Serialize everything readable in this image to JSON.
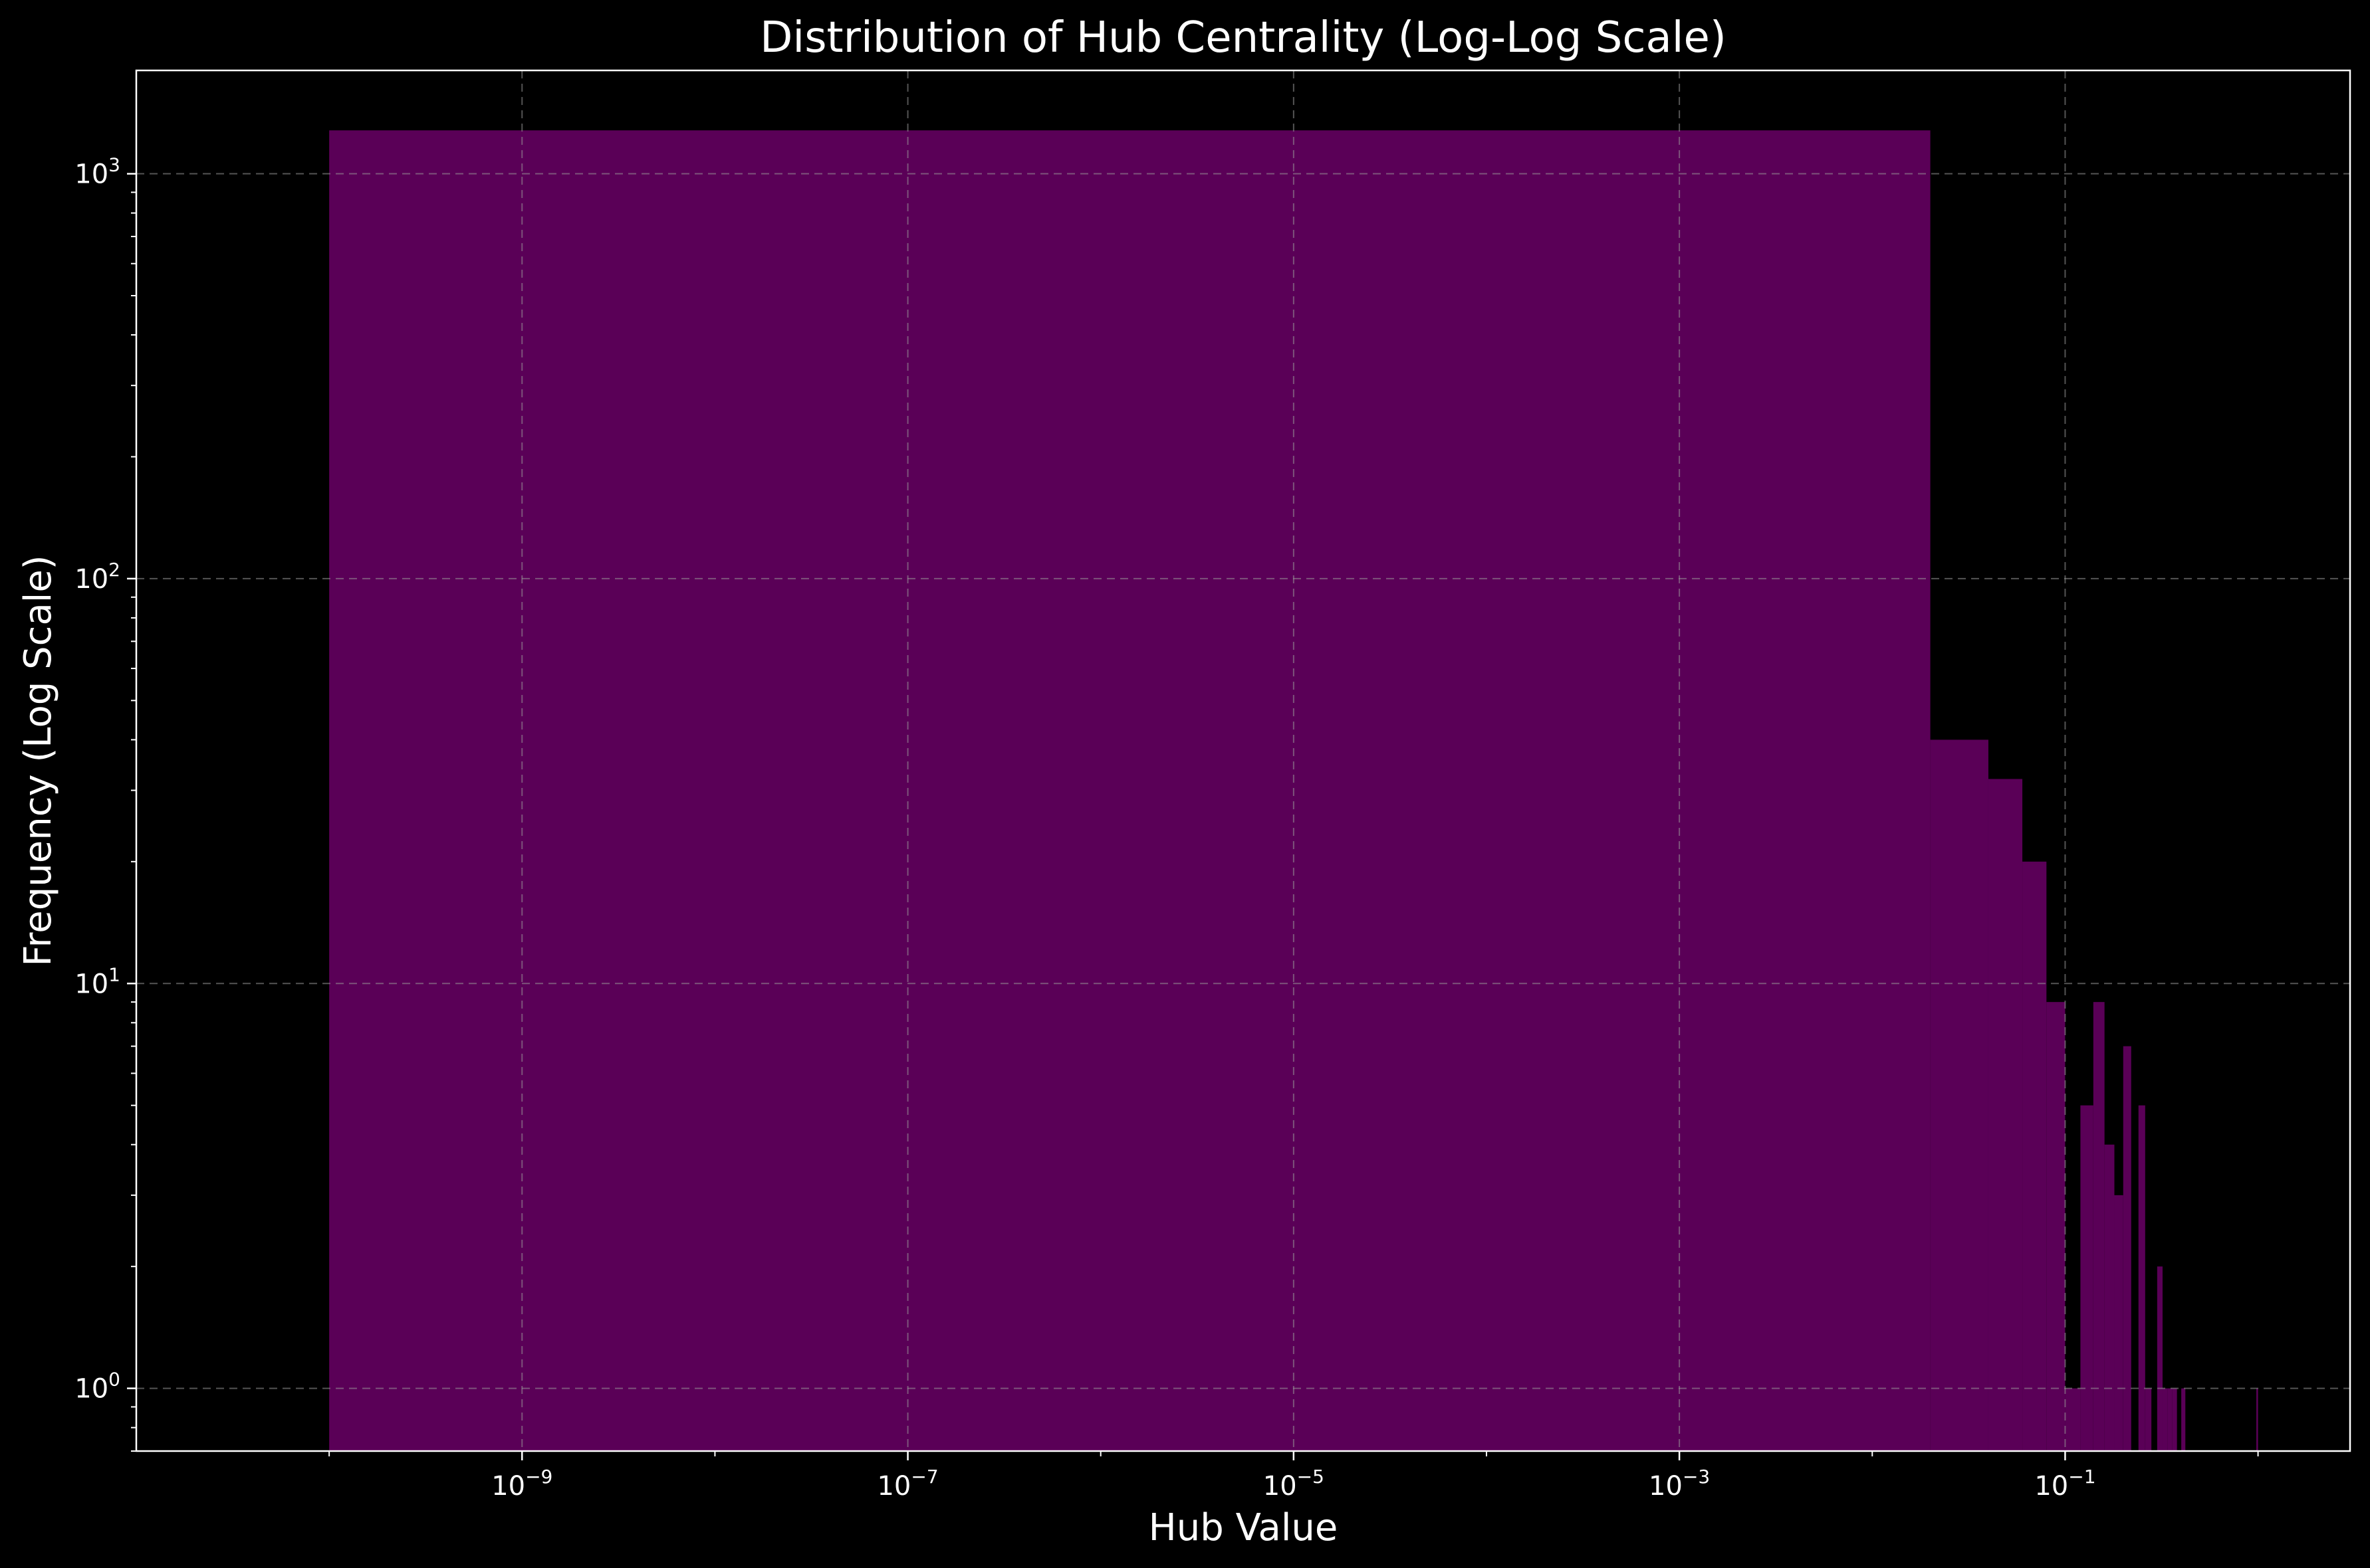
{
  "chart_data": {
    "type": "bar",
    "title": "Distribution of Hub Centrality (Log-Log Scale)",
    "xlabel": "Hub Value",
    "ylabel": "Frequency (Log Scale)",
    "x_scale": "log",
    "y_scale": "log",
    "xlim": [
      1e-11,
      3.0
    ],
    "ylim": [
      0.7,
      1800
    ],
    "grid": true,
    "legend": "none",
    "bar_color": "#5a0057",
    "background": "#000000",
    "x_ticks": [
      {
        "value": 1e-09,
        "base": "10",
        "exp": "−9"
      },
      {
        "value": 1e-07,
        "base": "10",
        "exp": "−7"
      },
      {
        "value": 1e-05,
        "base": "10",
        "exp": "−5"
      },
      {
        "value": 0.001,
        "base": "10",
        "exp": "−3"
      },
      {
        "value": 0.1,
        "base": "10",
        "exp": "−1"
      }
    ],
    "y_ticks": [
      {
        "value": 1,
        "base": "10",
        "exp": "0"
      },
      {
        "value": 10,
        "base": "10",
        "exp": "1"
      },
      {
        "value": 100,
        "base": "10",
        "exp": "2"
      },
      {
        "value": 1000,
        "base": "10",
        "exp": "3"
      }
    ],
    "bins": [
      {
        "x0": 1e-10,
        "x1": 0.02,
        "count": 1280
      },
      {
        "x0": 0.02,
        "x1": 0.04,
        "count": 40
      },
      {
        "x0": 0.04,
        "x1": 0.06,
        "count": 32
      },
      {
        "x0": 0.06,
        "x1": 0.08,
        "count": 20
      },
      {
        "x0": 0.08,
        "x1": 0.1,
        "count": 9
      },
      {
        "x0": 0.1,
        "x1": 0.12,
        "count": 1
      },
      {
        "x0": 0.12,
        "x1": 0.14,
        "count": 5
      },
      {
        "x0": 0.14,
        "x1": 0.16,
        "count": 9
      },
      {
        "x0": 0.16,
        "x1": 0.18,
        "count": 4
      },
      {
        "x0": 0.18,
        "x1": 0.2,
        "count": 3
      },
      {
        "x0": 0.2,
        "x1": 0.22,
        "count": 7
      },
      {
        "x0": 0.22,
        "x1": 0.24,
        "count": 0
      },
      {
        "x0": 0.24,
        "x1": 0.26,
        "count": 5
      },
      {
        "x0": 0.26,
        "x1": 0.28,
        "count": 1
      },
      {
        "x0": 0.28,
        "x1": 0.3,
        "count": 0
      },
      {
        "x0": 0.3,
        "x1": 0.32,
        "count": 2
      },
      {
        "x0": 0.32,
        "x1": 0.34,
        "count": 1
      },
      {
        "x0": 0.34,
        "x1": 0.36,
        "count": 1
      },
      {
        "x0": 0.36,
        "x1": 0.38,
        "count": 1
      },
      {
        "x0": 0.38,
        "x1": 0.4,
        "count": 0
      },
      {
        "x0": 0.4,
        "x1": 0.42,
        "count": 1
      },
      {
        "x0": 0.98,
        "x1": 1.0,
        "count": 1
      }
    ]
  }
}
